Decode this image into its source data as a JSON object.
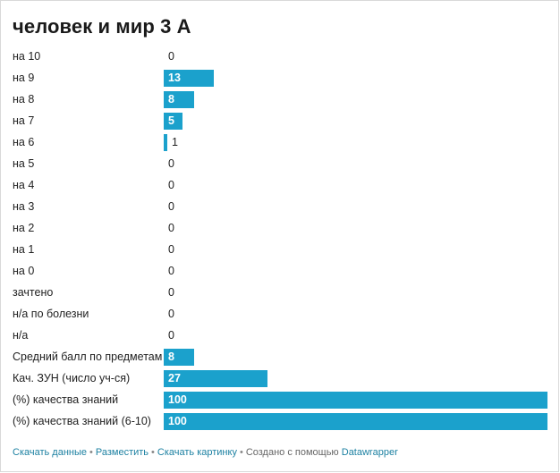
{
  "chart_data": {
    "type": "bar",
    "orientation": "horizontal",
    "title": "человек и мир 3 А",
    "categories": [
      "на 10",
      "на 9",
      "на 8",
      "на 7",
      "на 6",
      "на 5",
      "на 4",
      "на 3",
      "на 2",
      "на 1",
      "на 0",
      "зачтено",
      "н/а по болезни",
      "н/а",
      "Средний балл по предметам",
      "Кач. ЗУН (число уч-ся)",
      "(%) качества знаний",
      "(%) качества знаний (6-10)"
    ],
    "values": [
      0,
      13,
      8,
      5,
      1,
      0,
      0,
      0,
      0,
      0,
      0,
      0,
      0,
      0,
      8,
      27,
      100,
      100
    ],
    "xlim": [
      0,
      100
    ],
    "grid": false,
    "legend": "none",
    "bar_color": "#1ba1cc"
  },
  "footer": {
    "download_data": "Скачать данные",
    "embed": "Разместить",
    "download_image": "Скачать картинку",
    "created_with": "Создано с помощью",
    "datawrapper": "Datawrapper",
    "separator": "•"
  }
}
